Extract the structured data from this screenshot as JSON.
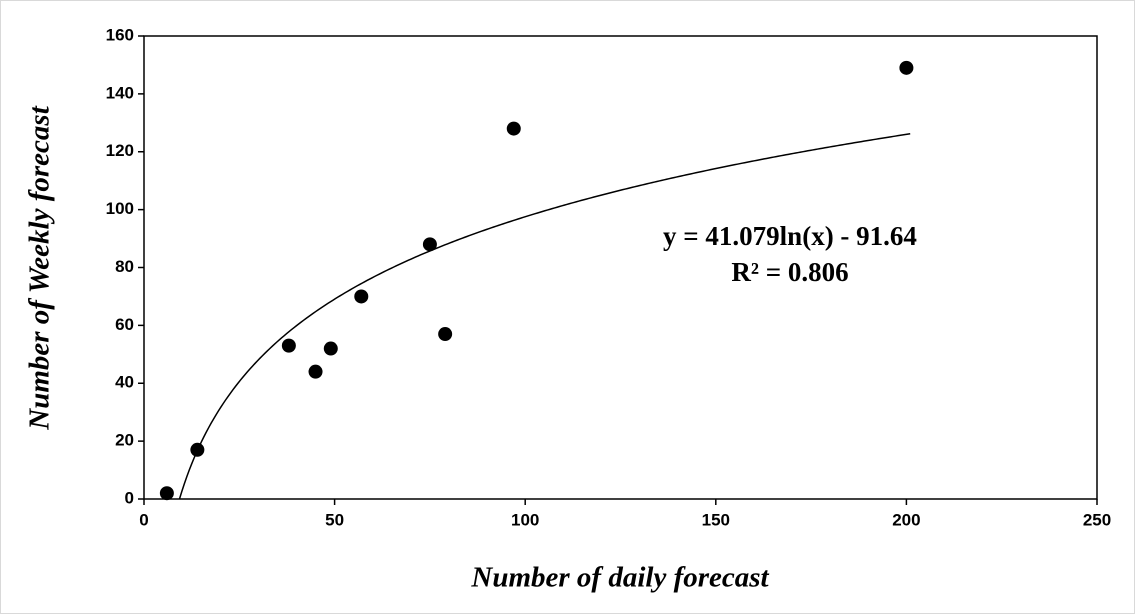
{
  "chart_data": {
    "type": "scatter",
    "x_label": "Number of  daily forecast",
    "y_label": "Number of Weekly forecast",
    "series": [
      {
        "color": "#000000",
        "x": [
          6,
          14,
          38,
          45,
          49,
          57,
          75,
          79,
          97,
          200
        ],
        "values": [
          2,
          17,
          53,
          44,
          52,
          70,
          88,
          57,
          128,
          149
        ]
      }
    ],
    "trendline": {
      "kind": "log",
      "a": 41.079,
      "b": -91.64,
      "color": "#000000",
      "equation_label": "y = 41.079ln(x) - 91.64",
      "r2_label": "R² = 0.806"
    },
    "xlim": [
      0,
      250
    ],
    "xticks": [
      0,
      50,
      100,
      150,
      200,
      250
    ],
    "ylim": [
      0,
      160
    ],
    "yticks": [
      0,
      20,
      40,
      60,
      80,
      100,
      120,
      140,
      160
    ],
    "grid": false
  }
}
